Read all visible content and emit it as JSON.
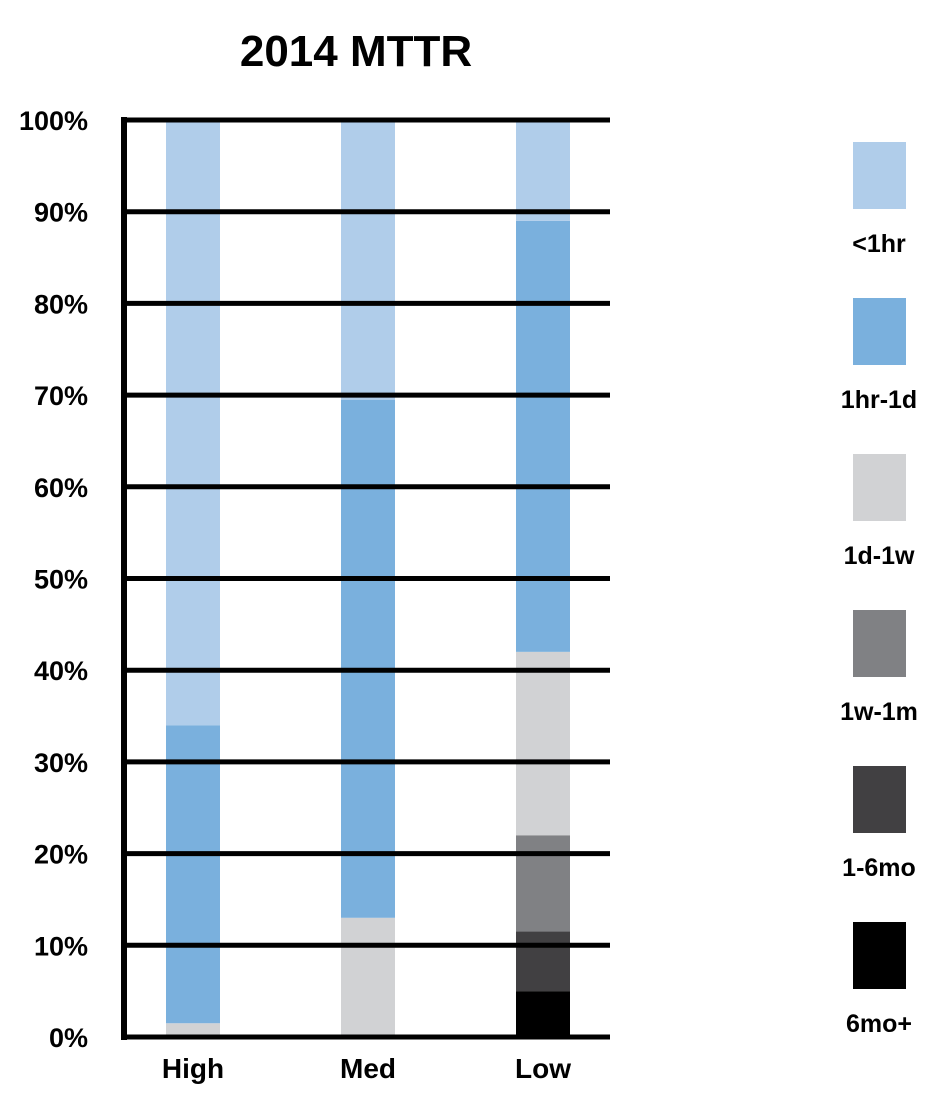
{
  "chart_data": {
    "type": "bar",
    "stacked": true,
    "title": "2014 MTTR",
    "xlabel": "",
    "ylabel": "",
    "ylim": [
      0,
      100
    ],
    "yticks": [
      "0%",
      "10%",
      "20%",
      "30%",
      "40%",
      "50%",
      "60%",
      "70%",
      "80%",
      "90%",
      "100%"
    ],
    "categories": [
      "High",
      "Med",
      "Low"
    ],
    "series": [
      {
        "name": "6mo+",
        "color": "#000000",
        "values": [
          0,
          0,
          5
        ]
      },
      {
        "name": "1-6mo",
        "color": "#414042",
        "values": [
          0,
          0,
          6.5
        ]
      },
      {
        "name": "1w-1m",
        "color": "#808184",
        "values": [
          0,
          0,
          10.5
        ]
      },
      {
        "name": "1d-1w",
        "color": "#d1d2d4",
        "values": [
          1.5,
          13,
          20
        ]
      },
      {
        "name": "1hr-1d",
        "color": "#7ab0dd",
        "values": [
          32.5,
          56.5,
          47
        ]
      },
      {
        "name": "<1hr",
        "color": "#b0cdea",
        "values": [
          66,
          30.5,
          11
        ]
      }
    ],
    "legend_position": "right",
    "legend_order": [
      "<1hr",
      "1hr-1d",
      "1d-1w",
      "1w-1m",
      "1-6mo",
      "6mo+"
    ],
    "grid": true
  }
}
